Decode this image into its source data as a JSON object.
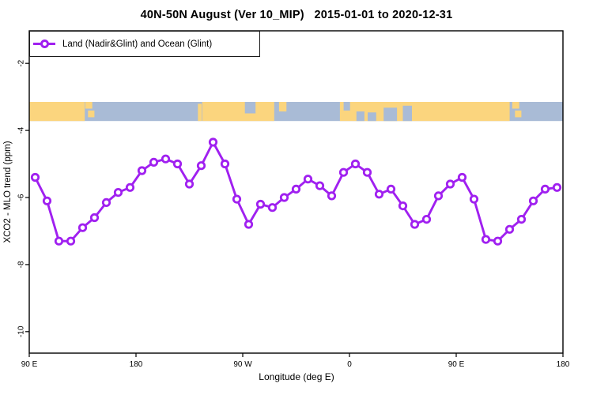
{
  "title": "40N-50N August (Ver 10_MIP)   2015-01-01 to 2020-12-31",
  "legend": {
    "label": "Land (Nadir&Glint) and Ocean (Glint)"
  },
  "axes": {
    "xlabel": "Longitude (deg E)",
    "ylabel": "XCO2 - MLO trend (ppm)"
  },
  "chart_data": {
    "type": "line",
    "title": "40N-50N August (Ver 10_MIP)   2015-01-01 to 2020-12-31",
    "xlabel": "Longitude (deg E)",
    "ylabel": "XCO2 - MLO trend (ppm)",
    "legend_entries": [
      "Land (Nadir&Glint) and Ocean (Glint)"
    ],
    "legend_position": "top-left",
    "grid": false,
    "line_color": "#A020F0",
    "marker": "open-circle",
    "axis_note": "x axis starts at 90E and wraps eastward: 90E>180>90W>0>90E>180 (450 deg total, offsets used below)",
    "x_range": [
      0,
      450
    ],
    "y_range": [
      -10.64,
      -1.03
    ],
    "x_ticks": [
      {
        "label": "90 E",
        "pos": 0
      },
      {
        "label": "180",
        "pos": 90
      },
      {
        "label": "90 W",
        "pos": 180
      },
      {
        "label": "0",
        "pos": 270
      },
      {
        "label": "90 E",
        "pos": 360
      },
      {
        "label": "180",
        "pos": 450
      }
    ],
    "y_ticks": [
      {
        "label": "-2",
        "value": -2
      },
      {
        "label": "-4",
        "value": -4
      },
      {
        "label": "-6",
        "value": -6
      },
      {
        "label": "-8",
        "value": -8
      },
      {
        "label": "-10",
        "value": -10
      }
    ],
    "series": [
      {
        "name": "Land (Nadir&Glint) and Ocean (Glint)",
        "x_start_offset": 5,
        "x_step": 10,
        "values": [
          -5.4,
          -6.1,
          -7.3,
          -7.3,
          -6.9,
          -6.6,
          -6.15,
          -5.85,
          -5.7,
          -5.2,
          -4.95,
          -4.85,
          -5.0,
          -5.6,
          -5.05,
          -4.35,
          -5.0,
          -6.05,
          -6.8,
          -6.2,
          -6.3,
          -6.0,
          -5.75,
          -5.45,
          -5.65,
          -5.95,
          -5.25,
          -5.0,
          -5.25,
          -5.9,
          -5.75,
          -6.25,
          -6.8,
          -6.65,
          -5.95,
          -5.6,
          -5.4,
          -6.05,
          -7.25,
          -7.3,
          -6.95,
          -6.65,
          -6.1,
          -5.75,
          -5.7
        ]
      }
    ],
    "map_band": {
      "description": "40N-50N latitude strip map: land (tan) / ocean (blue) vs longitude",
      "value_range": [
        -3.15,
        -3.72
      ],
      "ocean_color": "#A9BBD6",
      "land_color": "#FBD57E",
      "land_segments": [
        [
          0.0,
          0.104,
          0,
          1
        ],
        [
          0.105,
          0.118,
          0.0,
          0.35
        ],
        [
          0.11,
          0.122,
          0.45,
          0.8
        ],
        [
          0.316,
          0.323,
          0.1,
          1
        ],
        [
          0.324,
          0.459,
          0,
          1
        ],
        [
          0.468,
          0.482,
          0,
          0.5
        ],
        [
          0.582,
          0.9,
          0,
          1
        ],
        [
          0.905,
          0.918,
          0.0,
          0.35
        ],
        [
          0.91,
          0.922,
          0.45,
          0.8
        ]
      ],
      "water_insets": [
        [
          0.404,
          0.424,
          0.0,
          0.6
        ],
        [
          0.589,
          0.601,
          0.0,
          0.45
        ],
        [
          0.613,
          0.628,
          0.5,
          1
        ],
        [
          0.634,
          0.65,
          0.55,
          1
        ],
        [
          0.664,
          0.689,
          0.3,
          1
        ],
        [
          0.7,
          0.717,
          0.2,
          1
        ]
      ]
    }
  }
}
